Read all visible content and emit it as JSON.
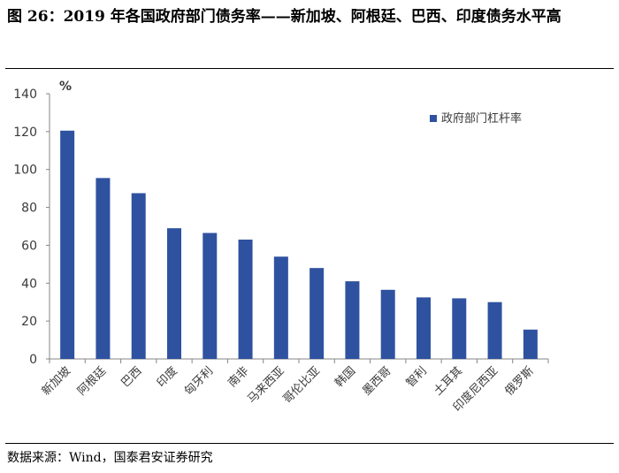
{
  "figure": {
    "title": "图 26：2019 年各国政府部门债务率——新加坡、阿根廷、巴西、印度债务水平高",
    "source": "数据来源：Wind，国泰君安证券研究"
  },
  "chart_data": {
    "type": "bar",
    "categories": [
      "新加坡",
      "阿根廷",
      "巴西",
      "印度",
      "匈牙利",
      "南非",
      "马来西亚",
      "哥伦比亚",
      "韩国",
      "墨西哥",
      "智利",
      "土耳其",
      "印度尼西亚",
      "俄罗斯"
    ],
    "series": [
      {
        "name": "政府部门杠杆率",
        "values": [
          120.5,
          95.5,
          87.5,
          69,
          66.5,
          63,
          54,
          48,
          41,
          36.5,
          32.5,
          32,
          30,
          15.5
        ],
        "color": "#2F52A0"
      }
    ],
    "unit": "%",
    "ylim": [
      0,
      140
    ],
    "yticks": [
      0,
      20,
      40,
      60,
      80,
      100,
      120,
      140
    ],
    "grid": false,
    "legend_position": "top-right"
  }
}
